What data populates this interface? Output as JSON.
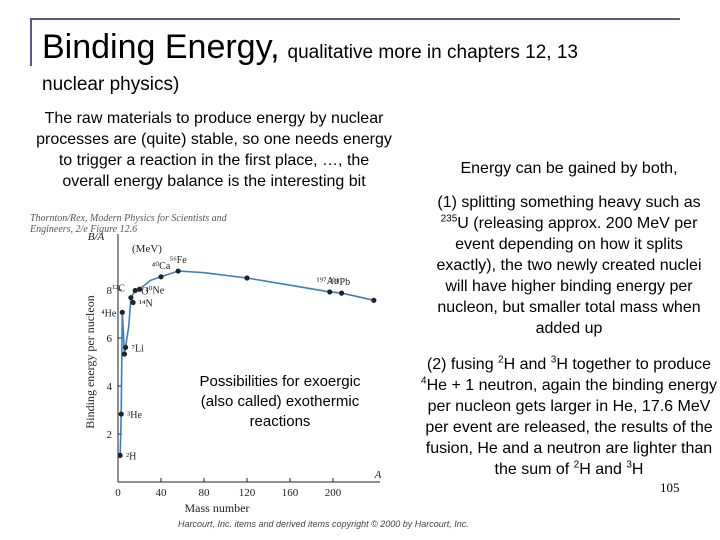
{
  "title": {
    "main": "Binding Energy,",
    "aside": "qualitative more in chapters 12, 13",
    "line2": "nuclear physics)"
  },
  "left_paragraph": "The raw materials to produce energy by nuclear processes are (quite) stable, so one needs energy to trigger a reaction in the first place, …, the overall energy balance is the interesting bit",
  "right": {
    "heading": "Energy can be gained by both,",
    "p1": {
      "a": "(1) splitting something heavy such as ",
      "iso_mass": "235",
      "iso_el": "U",
      "b": " (releasing approx. 200 MeV per event depending on how it splits exactly), the two newly created nuclei will have higher binding energy per nucleon, but smaller total mass when added up"
    },
    "p2": {
      "a": "(2) fusing ",
      "m1": "2",
      "e1": "H and ",
      "m2": "3",
      "e2": "H together to produce ",
      "m3": "4",
      "e3": "He + 1 neutron, again the binding energy per nucleon gets larger in He, 17.6 MeV per event are released, the results of the fusion, He and a neutron are lighter than the sum of ",
      "m4": "2",
      "e4": "H and ",
      "m5": "3",
      "e5": "H"
    }
  },
  "figure": {
    "caption": "Thornton/Rex, Modern Physics for Scientists and Engineers, 2/e Figure 12.6",
    "credit": "Harcourt, Inc. items and derived items copyright © 2000 by Harcourt, Inc.",
    "overlay_text": "Possibilities for exoergic (also called) exothermic reactions"
  },
  "page_number": "105",
  "chart_data": {
    "type": "line",
    "title": "",
    "xlabel": "Mass number",
    "ylabel": "Binding energy per nucleon",
    "y_axis_top_label": "B/A",
    "y_unit": "(MeV)",
    "x_axis_end_label": "A",
    "xlim": [
      0,
      240
    ],
    "ylim": [
      0,
      10
    ],
    "x_ticks": [
      "0",
      "40",
      "80",
      "120",
      "160",
      "200"
    ],
    "y_ticks": [
      "2",
      "4",
      "6",
      "8"
    ],
    "grid": false,
    "series": [
      {
        "points": [
          {
            "x": 2,
            "y": 1.11,
            "label": "²H"
          },
          {
            "x": 3,
            "y": 2.83,
            "label": "³He"
          },
          {
            "x": 6,
            "y": 5.33
          },
          {
            "x": 7,
            "y": 5.61,
            "label": "⁷Li"
          },
          {
            "x": 4,
            "y": 7.07,
            "label": "⁴He"
          },
          {
            "x": 12,
            "y": 7.68,
            "label": "¹²C"
          },
          {
            "x": 14,
            "y": 7.48,
            "label": "¹⁴N"
          },
          {
            "x": 16,
            "y": 7.98,
            "label": "O"
          },
          {
            "x": 20,
            "y": 8.03,
            "label": "²⁰Ne"
          },
          {
            "x": 40,
            "y": 8.55,
            "label": "⁴⁰Ca"
          },
          {
            "x": 56,
            "y": 8.79,
            "label": "⁵⁶Fe"
          },
          {
            "x": 120,
            "y": 8.5
          },
          {
            "x": 197,
            "y": 7.92,
            "label": "¹⁹⁷Au"
          },
          {
            "x": 208,
            "y": 7.87,
            "label": "²⁰⁸Pb"
          },
          {
            "x": 238,
            "y": 7.57
          }
        ]
      }
    ],
    "curve_color": "#3a7fc1",
    "point_color": "#222222"
  }
}
